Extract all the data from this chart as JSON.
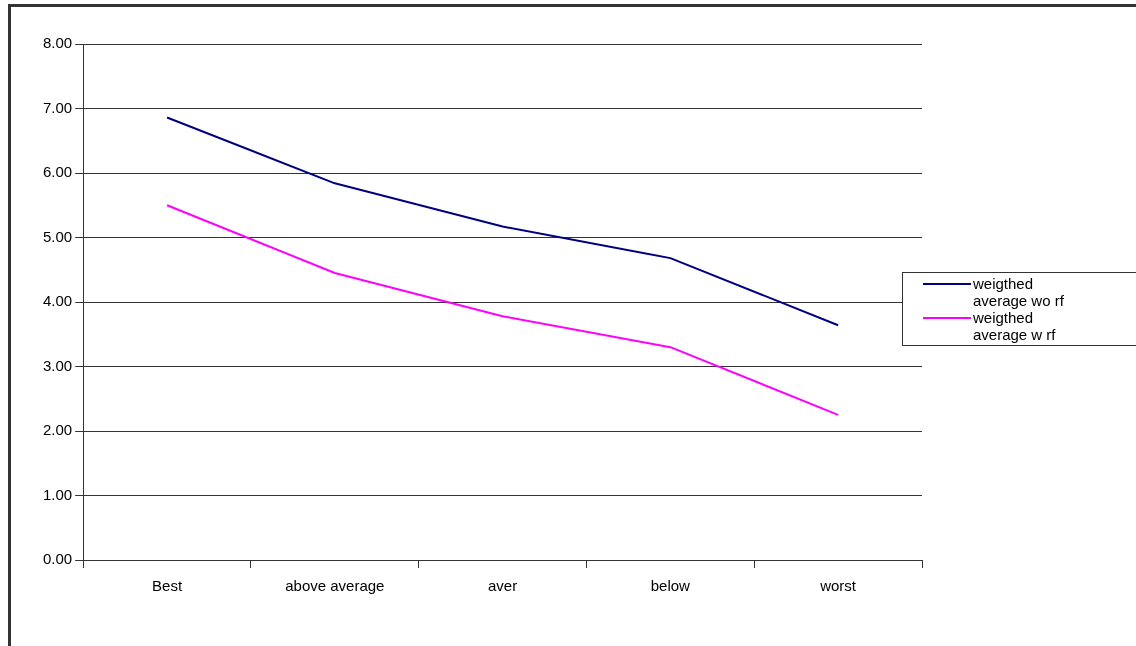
{
  "chart_data": {
    "type": "line",
    "categories": [
      "Best",
      "above average",
      "aver",
      "below",
      "worst"
    ],
    "series": [
      {
        "name": "weigthed average wo rf",
        "color": "#000080",
        "values": [
          6.86,
          5.84,
          5.17,
          4.68,
          3.64
        ]
      },
      {
        "name": "weigthed average w rf",
        "color": "#ff00ff",
        "values": [
          5.5,
          4.45,
          3.78,
          3.3,
          2.25
        ]
      }
    ],
    "ylim": [
      0,
      8
    ],
    "yticks": [
      {
        "value": 0,
        "label": "0.00"
      },
      {
        "value": 1,
        "label": "1.00"
      },
      {
        "value": 2,
        "label": "2.00"
      },
      {
        "value": 3,
        "label": "3.00"
      },
      {
        "value": 4,
        "label": "4.00"
      },
      {
        "value": 5,
        "label": "5.00"
      },
      {
        "value": 6,
        "label": "6.00"
      },
      {
        "value": 7,
        "label": "7.00"
      },
      {
        "value": 8,
        "label": "8.00"
      }
    ],
    "grid": "y",
    "legend": "right",
    "marker": "none",
    "line_style": "solid"
  }
}
